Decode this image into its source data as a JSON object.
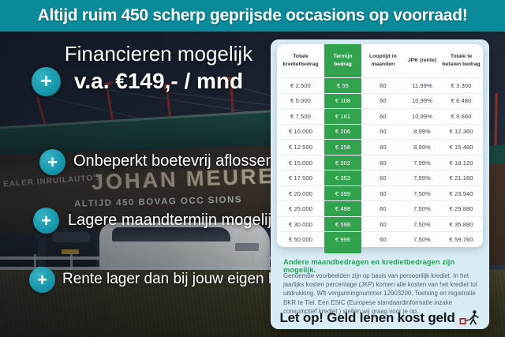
{
  "banner": {
    "text": "Altijd ruim 450 scherp geprijsde occasions op voorraad!"
  },
  "promo": {
    "plus_icon": "+",
    "headline": "Financieren mogelijk",
    "subheadline": "v.a. €149,- / mnd",
    "bullets": [
      "Onbeperkt boetevrij aflossen",
      "Lagere maandtermijn mogelijk",
      "Rente lager dan bij jouw eigen bank"
    ]
  },
  "photo": {
    "signage_small": "EALER INRUILAUTO'S",
    "signage_large": "JOHAN MEURE",
    "signage_sub": "ALTIJD 450 BOVAG OCC SIONS"
  },
  "panel": {
    "table": {
      "headers": [
        "Totale kredietbedrag",
        "Termijn bedrag",
        "Looptijd in maanden",
        "JPK (rente)",
        "Totale te betalen bedrag"
      ],
      "rows": [
        [
          "€ 2.500",
          "€ 55",
          "60",
          "11,99%",
          "€ 3.300"
        ],
        [
          "€ 5.000",
          "€ 108",
          "60",
          "10,99%",
          "€ 6.480"
        ],
        [
          "€ 7.500",
          "€ 161",
          "60",
          "10,99%",
          "€ 9.660"
        ],
        [
          "€ 10.000",
          "€ 206",
          "60",
          "8,99%",
          "€ 12.360"
        ],
        [
          "€ 12.500",
          "€ 258",
          "60",
          "8,99%",
          "€ 15.480"
        ],
        [
          "€ 15.000",
          "€ 302",
          "60",
          "7,99%",
          "€ 18.120"
        ],
        [
          "€ 17.500",
          "€ 353",
          "60",
          "7,99%",
          "€ 21.180"
        ],
        [
          "€ 20.000",
          "€ 399",
          "60",
          "7,50%",
          "€ 23.940"
        ],
        [
          "€ 25.000",
          "€ 498",
          "60",
          "7,50%",
          "€ 29.880"
        ],
        [
          "€ 30.000",
          "€ 598",
          "60",
          "7,50%",
          "€ 35.880"
        ],
        [
          "€ 50.000",
          "€ 996",
          "60",
          "7,50%",
          "€ 59.760"
        ]
      ]
    },
    "subtitle": "Andere maandbedragen en kredietbedragen zijn mogelijk.",
    "disclaimer": "Genoemde voorbeelden zijn op basis van persoonlijk krediet. In het jaarlijks kosten percentage (JKP) komen alle kosten van het krediet tot uitdrukking. Wft-vergunningnummer 12003200. Toetsing en registratie BKR te Tiel. Een ESIC (Europese standaardinformatie inzake consumptief krediet ) stellen wij graag voor je op.",
    "warning": "Let op! Geld lenen kost geld"
  },
  "colors": {
    "banner_teal": "#0b8b9a",
    "plus_circle_teal": "#1899ae",
    "table_green": "#31a34f",
    "panel_blue": "#d9ecf4",
    "subtitle_green": "#2d9e60",
    "warning_icon_red": "#c32b28"
  }
}
